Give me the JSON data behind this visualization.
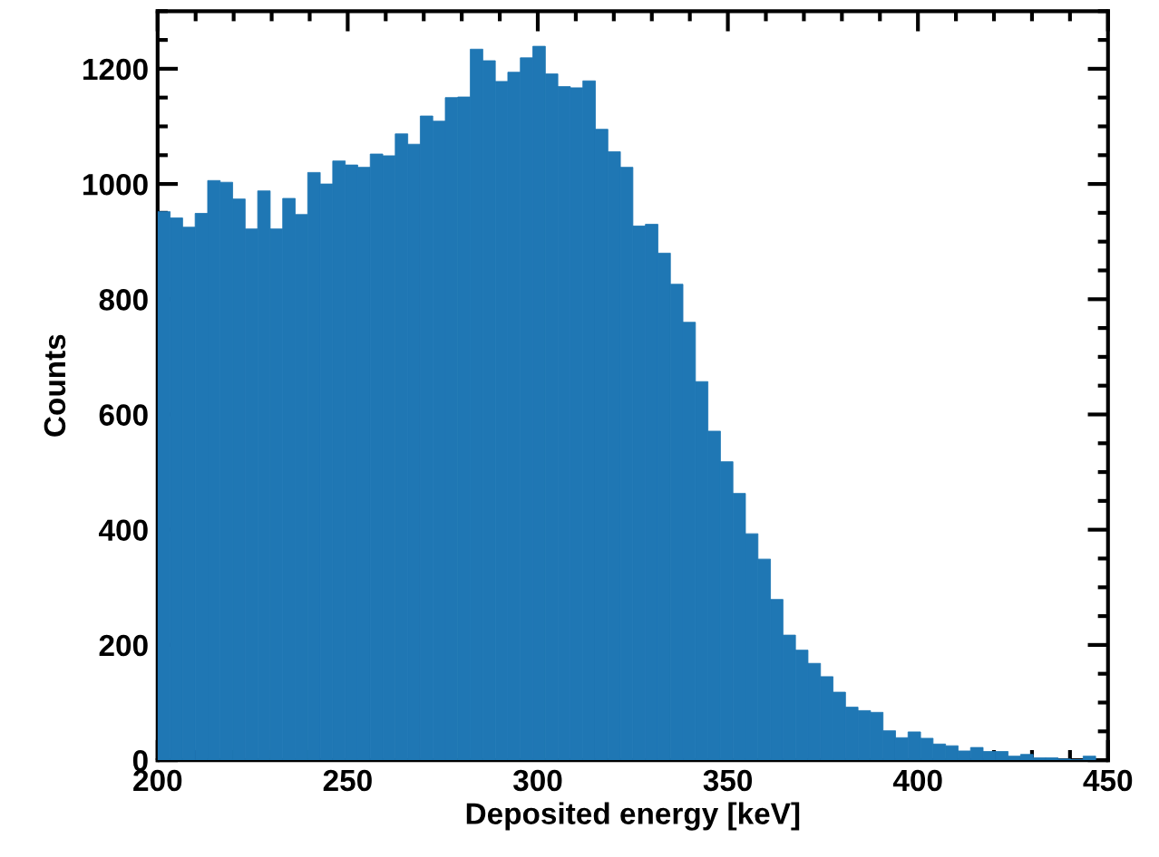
{
  "chart_data": {
    "type": "histogram",
    "xlabel": "Deposited energy [keV]",
    "ylabel": "Counts",
    "color": "#1f77b4",
    "bins": [
      200,
      203.29,
      206.58,
      209.87,
      213.16,
      216.45,
      219.74,
      223.03,
      226.32,
      229.61,
      232.9,
      236.19,
      239.48,
      242.77,
      246.06,
      249.35,
      252.64,
      255.93,
      259.22,
      262.51,
      265.8,
      269.09,
      272.38,
      275.67,
      278.96,
      282.25,
      285.54,
      288.83,
      292.12,
      295.41,
      298.7,
      301.99,
      305.28,
      308.57,
      311.86,
      315.15,
      318.44,
      321.73,
      325.02,
      328.31,
      331.6,
      334.89,
      338.18,
      341.47,
      344.76,
      348.05,
      351.34,
      354.63,
      357.92,
      361.21,
      364.5,
      367.79,
      371.08,
      374.37,
      377.66,
      380.95,
      384.24,
      387.53,
      390.82,
      394.11,
      397.4,
      400.69,
      403.98,
      407.27,
      410.56,
      413.85,
      417.14,
      420.43,
      423.72,
      427.01,
      430.3,
      433.59,
      436.88,
      440.17,
      443.46,
      446.75
    ],
    "values": [
      952,
      941,
      925,
      949,
      1006,
      1003,
      974,
      922,
      988,
      922,
      975,
      947,
      1020,
      1000,
      1040,
      1033,
      1029,
      1052,
      1049,
      1087,
      1069,
      1118,
      1109,
      1150,
      1151,
      1234,
      1214,
      1178,
      1194,
      1219,
      1239,
      1191,
      1169,
      1167,
      1179,
      1095,
      1056,
      1029,
      927,
      930,
      880,
      826,
      760,
      657,
      571,
      518,
      463,
      393,
      349,
      279,
      217,
      191,
      168,
      145,
      118,
      92,
      86,
      83,
      51,
      39,
      49,
      38,
      28,
      25,
      16,
      22,
      15,
      15,
      7,
      10,
      4,
      4,
      2,
      1,
      7
    ],
    "xlim": [
      200,
      450
    ],
    "xticks": [
      200,
      {
        "value": 210,
        "label": null
      },
      {
        "value": 220,
        "label": null
      },
      {
        "value": 230,
        "label": null
      },
      {
        "value": 240,
        "label": null
      },
      250,
      {
        "value": 260,
        "label": null
      },
      {
        "value": 270,
        "label": null
      },
      {
        "value": 280,
        "label": null
      },
      {
        "value": 290,
        "label": null
      },
      300,
      {
        "value": 310,
        "label": null
      },
      {
        "value": 320,
        "label": null
      },
      {
        "value": 330,
        "label": null
      },
      {
        "value": 340,
        "label": null
      },
      350,
      {
        "value": 360,
        "label": null
      },
      {
        "value": 370,
        "label": null
      },
      {
        "value": 380,
        "label": null
      },
      {
        "value": 390,
        "label": null
      },
      400,
      {
        "value": 410,
        "label": null
      },
      {
        "value": 420,
        "label": null
      },
      {
        "value": 430,
        "label": null
      },
      {
        "value": 440,
        "label": null
      },
      450
    ],
    "ylim": [
      0,
      1300
    ],
    "yticks": [
      0,
      {
        "value": 50,
        "label": null
      },
      {
        "value": 100,
        "label": null
      },
      {
        "value": 150,
        "label": null
      },
      200,
      {
        "value": 250,
        "label": null
      },
      {
        "value": 300,
        "label": null
      },
      {
        "value": 350,
        "label": null
      },
      400,
      {
        "value": 450,
        "label": null
      },
      {
        "value": 500,
        "label": null
      },
      {
        "value": 550,
        "label": null
      },
      600,
      {
        "value": 650,
        "label": null
      },
      {
        "value": 700,
        "label": null
      },
      {
        "value": 750,
        "label": null
      },
      800,
      {
        "value": 850,
        "label": null
      },
      {
        "value": 900,
        "label": null
      },
      {
        "value": 950,
        "label": null
      },
      1000,
      {
        "value": 1050,
        "label": null
      },
      {
        "value": 1100,
        "label": null
      },
      {
        "value": 1150,
        "label": null
      },
      1200,
      {
        "value": 1250,
        "label": null
      },
      {
        "value": 1300,
        "label": null
      }
    ]
  }
}
